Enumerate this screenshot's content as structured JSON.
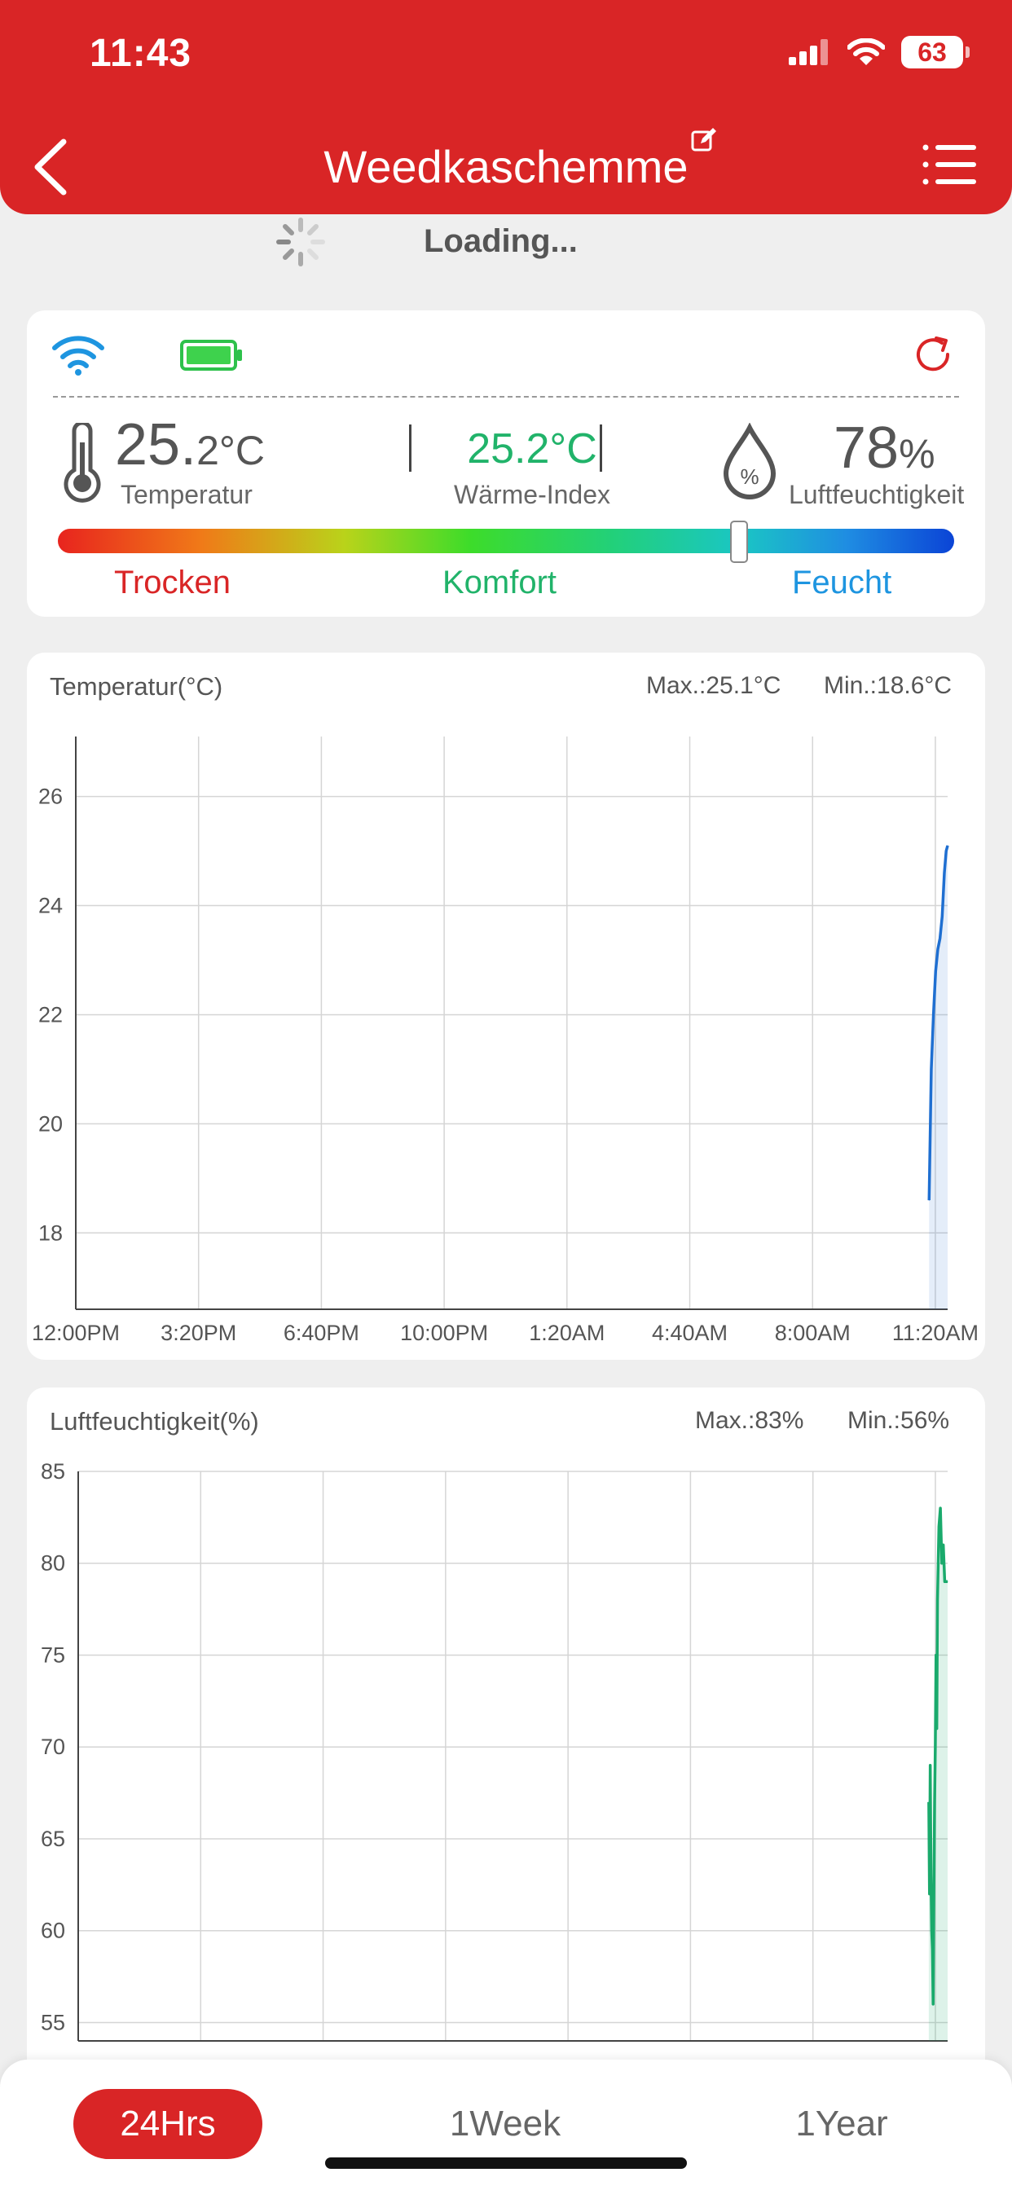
{
  "status_bar": {
    "time": "11:43",
    "battery": "63"
  },
  "header": {
    "title": "Weedkaschemme"
  },
  "loading_text": "Loading...",
  "current": {
    "temperature_int": "25.",
    "temperature_rest": "2°C",
    "temperature_label": "Temperatur",
    "heat_index": "25.2°C",
    "heat_index_label": "Wärme-Index",
    "humidity_int": "78",
    "humidity_unit": "%",
    "humidity_label": "Luftfeuchtigkeit",
    "comfort_position": 0.76,
    "comfort_labels": {
      "dry": "Trocken",
      "comfort": "Komfort",
      "humid": "Feucht"
    }
  },
  "colors": {
    "accent": "#d92526",
    "temp_line": "#1f6fd1",
    "hum_line": "#1aaa6c",
    "comfort_green": "#21b36a",
    "humid_blue": "#1e95e0"
  },
  "chart_data": [
    {
      "type": "line",
      "title": "Temperatur(°C)",
      "max_label": "Max.:25.1°C",
      "min_label": "Min.:18.6°C",
      "x_ticks": [
        "12:00PM",
        "3:20PM",
        "6:40PM",
        "10:00PM",
        "1:20AM",
        "4:40AM",
        "8:00AM",
        "11:20AM"
      ],
      "y_ticks": [
        18,
        20,
        22,
        24,
        26
      ],
      "ylim": [
        16.6,
        27.1
      ],
      "xlim_hours": [
        0,
        24
      ],
      "grid": true,
      "series": [
        {
          "x": [
            23.49,
            23.55,
            23.61,
            23.67,
            23.73,
            23.79,
            23.85,
            23.91,
            23.96,
            24.0
          ],
          "y": [
            18.6,
            21.0,
            22.0,
            22.8,
            23.2,
            23.4,
            23.8,
            24.6,
            25.0,
            25.1
          ]
        }
      ]
    },
    {
      "type": "line",
      "title": "Luftfeuchtigkeit(%)",
      "max_label": "Max.:83%",
      "min_label": "Min.:56%",
      "x_ticks": [
        "12:00PM",
        "3:20PM",
        "6:40PM",
        "10:00PM",
        "1:20AM",
        "4:40AM",
        "8:00AM",
        "11:20AM"
      ],
      "y_ticks": [
        55,
        60,
        65,
        70,
        75,
        80,
        85
      ],
      "ylim": [
        54,
        85
      ],
      "xlim_hours": [
        0,
        24
      ],
      "grid": true,
      "series": [
        {
          "x": [
            23.48,
            23.5,
            23.52,
            23.54,
            23.56,
            23.58,
            23.6,
            23.62,
            23.64,
            23.66,
            23.68,
            23.7,
            23.72,
            23.74,
            23.76,
            23.8,
            23.84,
            23.88,
            23.92,
            23.96,
            24.0
          ],
          "y": [
            67,
            62,
            69,
            63,
            60,
            59,
            56,
            62,
            67,
            70,
            75,
            71,
            78,
            80,
            82,
            83,
            80,
            81,
            79,
            79,
            79
          ]
        }
      ]
    }
  ],
  "tabs": {
    "day": "24Hrs",
    "week": "1Week",
    "year": "1Year"
  }
}
